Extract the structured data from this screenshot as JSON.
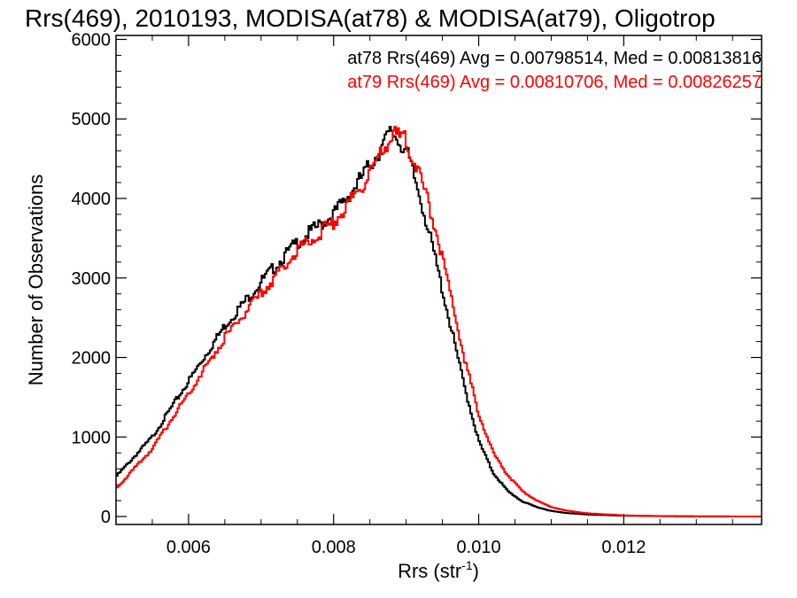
{
  "chart_data": {
    "type": "line",
    "title": "Rrs(469), 2010193, MODISA(at78) & MODISA(at79), Oligotrop",
    "xlabel": "Rrs (str",
    "xlabel_sup": "-1",
    "xlabel_close": ")",
    "ylabel": "Number of Observations",
    "xlim": [
      0.005,
      0.0139
    ],
    "ylim": [
      -100,
      6050
    ],
    "x_ticks": [
      0.006,
      0.008,
      0.01,
      0.012
    ],
    "x_tick_labels": [
      "0.006",
      "0.008",
      "0.010",
      "0.012"
    ],
    "y_ticks": [
      0,
      1000,
      2000,
      3000,
      4000,
      5000,
      6000
    ],
    "y_tick_labels": [
      "0",
      "1000",
      "2000",
      "3000",
      "4000",
      "5000",
      "6000"
    ],
    "annotations": [
      "at78 Rrs(469) Avg = 0.00798514, Med = 0.00813816",
      "at79 Rrs(469) Avg = 0.00810706, Med = 0.00826257"
    ],
    "series": [
      {
        "color": "#000000",
        "x": [
          0.005,
          0.0055,
          0.006,
          0.0065,
          0.007,
          0.0075,
          0.008,
          0.0083,
          0.0086,
          0.0088,
          0.009,
          0.0092,
          0.0094,
          0.0096,
          0.0098,
          0.01,
          0.0102,
          0.0104,
          0.0106,
          0.0108,
          0.011,
          0.0112,
          0.0115,
          0.012,
          0.0125,
          0.013,
          0.0139
        ],
        "values": [
          500,
          1000,
          1700,
          2400,
          2950,
          3450,
          3800,
          4150,
          4550,
          4850,
          4600,
          4000,
          3250,
          2450,
          1650,
          950,
          550,
          320,
          190,
          120,
          70,
          45,
          25,
          10,
          5,
          2,
          0
        ]
      },
      {
        "color": "#ff0000",
        "x": [
          0.005,
          0.0055,
          0.006,
          0.0065,
          0.007,
          0.0075,
          0.008,
          0.0083,
          0.0086,
          0.0088,
          0.009,
          0.0092,
          0.0094,
          0.0096,
          0.0098,
          0.01,
          0.0102,
          0.0104,
          0.0106,
          0.0108,
          0.011,
          0.0112,
          0.0115,
          0.012,
          0.0125,
          0.013,
          0.0139
        ],
        "values": [
          350,
          850,
          1550,
          2250,
          2800,
          3350,
          3700,
          4050,
          4450,
          4800,
          4750,
          4250,
          3650,
          2850,
          2000,
          1300,
          800,
          520,
          320,
          200,
          120,
          75,
          40,
          15,
          6,
          2,
          0
        ]
      }
    ]
  }
}
